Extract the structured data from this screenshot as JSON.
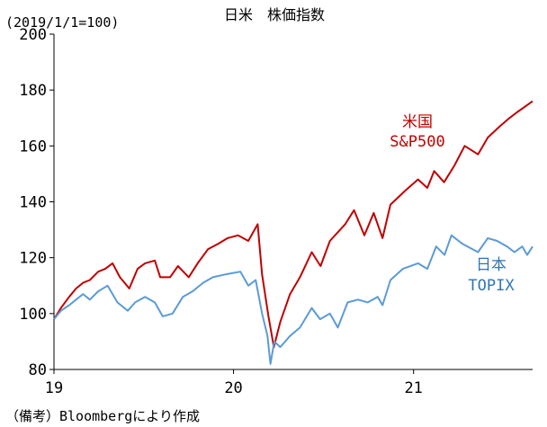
{
  "chart_data": {
    "type": "line",
    "title": "日米　株価指数",
    "unit_label": "(2019/1/1=100)",
    "xlabel": "",
    "ylabel": "",
    "x_tick_labels": [
      "19",
      "20",
      "21"
    ],
    "x_tick_dates": [
      "2019-01-01",
      "2020-01-01",
      "2021-01-01"
    ],
    "xlim": [
      "2019-01-01",
      "2021-08-31"
    ],
    "ylim": [
      80,
      200
    ],
    "y_ticks": [
      80,
      100,
      120,
      140,
      160,
      180,
      200
    ],
    "grid": false,
    "note": "（備考）Bloombergにより作成",
    "series": [
      {
        "name_line1": "米国",
        "name_line2": "S&P500",
        "color": "#c00000",
        "points": [
          [
            "2019-01-01",
            98
          ],
          [
            "2019-01-15",
            102
          ],
          [
            "2019-02-01",
            106
          ],
          [
            "2019-02-15",
            109
          ],
          [
            "2019-03-01",
            111
          ],
          [
            "2019-03-15",
            112
          ],
          [
            "2019-04-01",
            115
          ],
          [
            "2019-04-15",
            116
          ],
          [
            "2019-04-30",
            118
          ],
          [
            "2019-05-15",
            113
          ],
          [
            "2019-06-03",
            109
          ],
          [
            "2019-06-20",
            116
          ],
          [
            "2019-07-05",
            118
          ],
          [
            "2019-07-25",
            119
          ],
          [
            "2019-08-05",
            113
          ],
          [
            "2019-08-25",
            113
          ],
          [
            "2019-09-10",
            117
          ],
          [
            "2019-10-02",
            113
          ],
          [
            "2019-10-20",
            118
          ],
          [
            "2019-11-10",
            123
          ],
          [
            "2019-12-01",
            125
          ],
          [
            "2019-12-20",
            127
          ],
          [
            "2020-01-10",
            128
          ],
          [
            "2020-01-31",
            126
          ],
          [
            "2020-02-19",
            132
          ],
          [
            "2020-02-28",
            114
          ],
          [
            "2020-03-12",
            99
          ],
          [
            "2020-03-23",
            88
          ],
          [
            "2020-04-05",
            97
          ],
          [
            "2020-04-25",
            107
          ],
          [
            "2020-05-15",
            113
          ],
          [
            "2020-06-08",
            122
          ],
          [
            "2020-06-26",
            117
          ],
          [
            "2020-07-15",
            126
          ],
          [
            "2020-08-15",
            132
          ],
          [
            "2020-09-02",
            137
          ],
          [
            "2020-09-23",
            128
          ],
          [
            "2020-10-12",
            136
          ],
          [
            "2020-10-30",
            127
          ],
          [
            "2020-11-15",
            139
          ],
          [
            "2020-12-15",
            144
          ],
          [
            "2021-01-10",
            148
          ],
          [
            "2021-01-29",
            145
          ],
          [
            "2021-02-12",
            151
          ],
          [
            "2021-03-04",
            147
          ],
          [
            "2021-03-25",
            153
          ],
          [
            "2021-04-15",
            160
          ],
          [
            "2021-05-12",
            157
          ],
          [
            "2021-06-01",
            163
          ],
          [
            "2021-06-25",
            167
          ],
          [
            "2021-07-15",
            170
          ],
          [
            "2021-07-30",
            172
          ],
          [
            "2021-08-15",
            174
          ],
          [
            "2021-08-31",
            176
          ]
        ]
      },
      {
        "name_line1": "日本",
        "name_line2": "TOPIX",
        "color": "#5b9bd5",
        "points": [
          [
            "2019-01-01",
            98
          ],
          [
            "2019-01-15",
            101
          ],
          [
            "2019-02-01",
            103
          ],
          [
            "2019-02-15",
            105
          ],
          [
            "2019-03-01",
            107
          ],
          [
            "2019-03-15",
            105
          ],
          [
            "2019-04-01",
            108
          ],
          [
            "2019-04-20",
            110
          ],
          [
            "2019-05-10",
            104
          ],
          [
            "2019-05-31",
            101
          ],
          [
            "2019-06-15",
            104
          ],
          [
            "2019-07-05",
            106
          ],
          [
            "2019-07-25",
            104
          ],
          [
            "2019-08-10",
            99
          ],
          [
            "2019-08-30",
            100
          ],
          [
            "2019-09-20",
            106
          ],
          [
            "2019-10-10",
            108
          ],
          [
            "2019-10-31",
            111
          ],
          [
            "2019-11-20",
            113
          ],
          [
            "2019-12-15",
            114
          ],
          [
            "2020-01-15",
            115
          ],
          [
            "2020-01-31",
            110
          ],
          [
            "2020-02-15",
            112
          ],
          [
            "2020-02-28",
            100
          ],
          [
            "2020-03-10",
            92
          ],
          [
            "2020-03-16",
            82
          ],
          [
            "2020-03-24",
            90
          ],
          [
            "2020-04-05",
            88
          ],
          [
            "2020-04-25",
            92
          ],
          [
            "2020-05-15",
            95
          ],
          [
            "2020-06-08",
            102
          ],
          [
            "2020-06-25",
            98
          ],
          [
            "2020-07-15",
            100
          ],
          [
            "2020-07-31",
            95
          ],
          [
            "2020-08-20",
            104
          ],
          [
            "2020-09-10",
            105
          ],
          [
            "2020-09-30",
            104
          ],
          [
            "2020-10-20",
            106
          ],
          [
            "2020-10-30",
            103
          ],
          [
            "2020-11-15",
            112
          ],
          [
            "2020-12-10",
            116
          ],
          [
            "2021-01-10",
            118
          ],
          [
            "2021-01-29",
            116
          ],
          [
            "2021-02-16",
            124
          ],
          [
            "2021-03-05",
            121
          ],
          [
            "2021-03-19",
            128
          ],
          [
            "2021-04-10",
            125
          ],
          [
            "2021-05-12",
            122
          ],
          [
            "2021-06-01",
            127
          ],
          [
            "2021-06-20",
            126
          ],
          [
            "2021-07-10",
            124
          ],
          [
            "2021-07-25",
            122
          ],
          [
            "2021-08-10",
            124
          ],
          [
            "2021-08-20",
            121
          ],
          [
            "2021-08-31",
            124
          ]
        ]
      }
    ]
  }
}
